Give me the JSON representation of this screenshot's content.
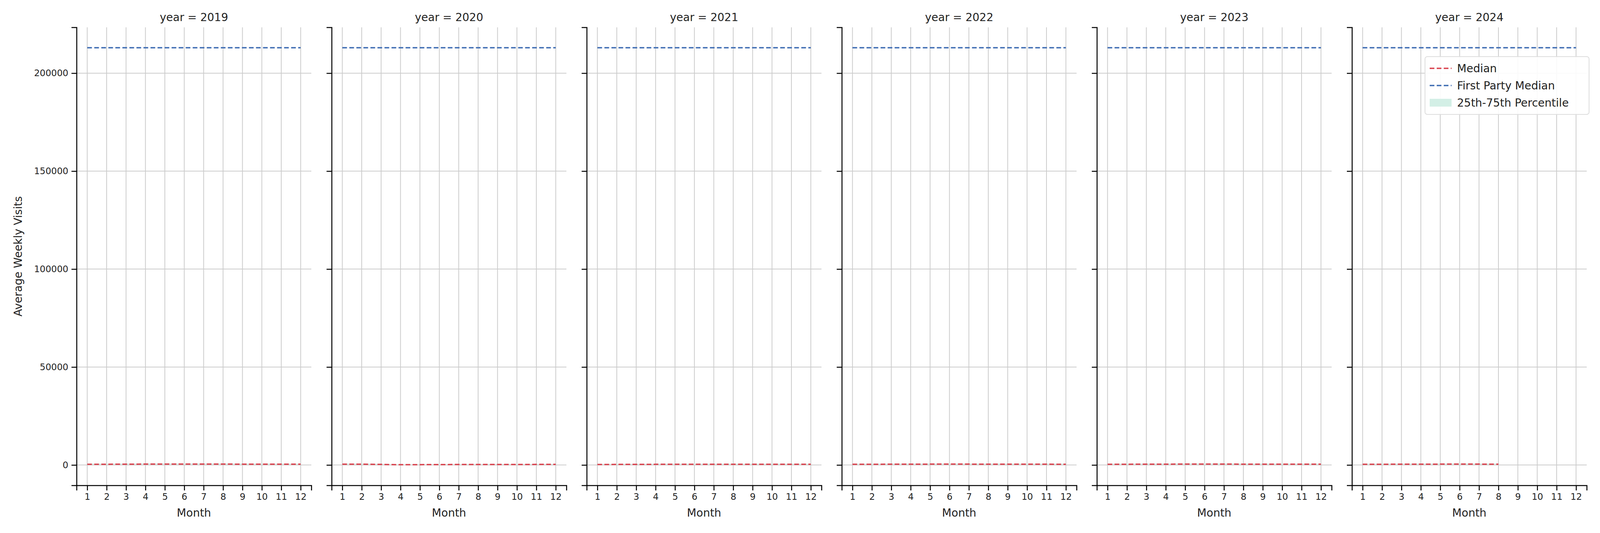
{
  "chart_data": [
    {
      "type": "line",
      "title": "year = 2019",
      "xlabel": "Month",
      "ylabel": "Average Weekly Visits",
      "x": [
        1,
        2,
        3,
        4,
        5,
        6,
        7,
        8,
        9,
        10,
        11,
        12
      ],
      "xlim": [
        0.45,
        12.55
      ],
      "ylim": [
        -10400,
        223400
      ],
      "xticks": [
        1,
        2,
        3,
        4,
        5,
        6,
        7,
        8,
        9,
        10,
        11,
        12
      ],
      "yticks": [
        0,
        50000,
        100000,
        150000,
        200000
      ],
      "grid": true,
      "series": [
        {
          "name": "25th-75th Percentile",
          "type": "area",
          "color": "#d3efe6",
          "low": [
            200,
            210,
            230,
            240,
            250,
            250,
            240,
            230,
            220,
            210,
            210,
            200
          ],
          "high": [
            700,
            720,
            760,
            790,
            810,
            820,
            810,
            790,
            760,
            740,
            730,
            720
          ]
        },
        {
          "name": "Median",
          "type": "line",
          "color": "#d9434f",
          "line_style": "dashed",
          "values": [
            350,
            380,
            420,
            450,
            470,
            480,
            470,
            450,
            430,
            410,
            400,
            390
          ]
        },
        {
          "name": "First Party Median",
          "type": "line",
          "color": "#3f6db3",
          "line_style": "dashed",
          "values": [
            213000,
            213000,
            213000,
            213000,
            213000,
            213000,
            213000,
            213000,
            213000,
            213000,
            213000,
            213000
          ]
        }
      ]
    },
    {
      "type": "line",
      "title": "year = 2020",
      "xlabel": "Month",
      "tick_labels": "x",
      "x": [
        1,
        2,
        3,
        4,
        5,
        6,
        7,
        8,
        9,
        10,
        11,
        12
      ],
      "xlim": [
        0.45,
        12.55
      ],
      "ylim": [
        -10400,
        223400
      ],
      "xticks": [
        1,
        2,
        3,
        4,
        5,
        6,
        7,
        8,
        9,
        10,
        11,
        12
      ],
      "yticks": [
        0,
        50000,
        100000,
        150000,
        200000
      ],
      "grid": true,
      "series": [
        {
          "name": "25th-75th Percentile",
          "type": "area",
          "color": "#d3efe6",
          "low": [
            220,
            230,
            160,
            60,
            80,
            100,
            120,
            130,
            140,
            140,
            150,
            160
          ],
          "high": [
            760,
            780,
            560,
            260,
            320,
            380,
            420,
            440,
            460,
            470,
            480,
            500
          ]
        },
        {
          "name": "Median",
          "type": "line",
          "color": "#d9434f",
          "line_style": "dashed",
          "values": [
            400,
            420,
            300,
            150,
            180,
            220,
            250,
            260,
            270,
            280,
            290,
            300
          ]
        },
        {
          "name": "First Party Median",
          "type": "line",
          "color": "#3f6db3",
          "line_style": "dashed",
          "values": [
            213000,
            213000,
            213000,
            213000,
            213000,
            213000,
            213000,
            213000,
            213000,
            213000,
            213000,
            213000
          ]
        }
      ]
    },
    {
      "type": "line",
      "title": "year = 2021",
      "xlabel": "Month",
      "tick_labels": "x",
      "x": [
        1,
        2,
        3,
        4,
        5,
        6,
        7,
        8,
        9,
        10,
        11,
        12
      ],
      "xlim": [
        0.45,
        12.55
      ],
      "ylim": [
        -10400,
        223400
      ],
      "xticks": [
        1,
        2,
        3,
        4,
        5,
        6,
        7,
        8,
        9,
        10,
        11,
        12
      ],
      "yticks": [
        0,
        50000,
        100000,
        150000,
        200000
      ],
      "grid": true,
      "series": [
        {
          "name": "25th-75th Percentile",
          "type": "area",
          "color": "#d3efe6",
          "low": [
            150,
            150,
            170,
            180,
            190,
            200,
            200,
            190,
            190,
            190,
            200,
            200
          ],
          "high": [
            520,
            540,
            580,
            620,
            650,
            670,
            670,
            650,
            640,
            640,
            650,
            660
          ]
        },
        {
          "name": "Median",
          "type": "line",
          "color": "#d9434f",
          "line_style": "dashed",
          "values": [
            280,
            290,
            320,
            340,
            360,
            370,
            370,
            360,
            350,
            350,
            360,
            370
          ]
        },
        {
          "name": "First Party Median",
          "type": "line",
          "color": "#3f6db3",
          "line_style": "dashed",
          "values": [
            213000,
            213000,
            213000,
            213000,
            213000,
            213000,
            213000,
            213000,
            213000,
            213000,
            213000,
            213000
          ]
        }
      ]
    },
    {
      "type": "line",
      "title": "year = 2022",
      "xlabel": "Month",
      "tick_labels": "x",
      "x": [
        1,
        2,
        3,
        4,
        5,
        6,
        7,
        8,
        9,
        10,
        11,
        12
      ],
      "xlim": [
        0.45,
        12.55
      ],
      "ylim": [
        -10400,
        223400
      ],
      "xticks": [
        1,
        2,
        3,
        4,
        5,
        6,
        7,
        8,
        9,
        10,
        11,
        12
      ],
      "yticks": [
        0,
        50000,
        100000,
        150000,
        200000
      ],
      "grid": true,
      "series": [
        {
          "name": "25th-75th Percentile",
          "type": "area",
          "color": "#d3efe6",
          "low": [
            190,
            200,
            210,
            220,
            230,
            230,
            220,
            210,
            210,
            200,
            200,
            200
          ],
          "high": [
            660,
            680,
            720,
            750,
            770,
            780,
            770,
            750,
            730,
            710,
            700,
            690
          ]
        },
        {
          "name": "Median",
          "type": "line",
          "color": "#d9434f",
          "line_style": "dashed",
          "values": [
            360,
            370,
            400,
            420,
            440,
            450,
            440,
            420,
            410,
            400,
            390,
            380
          ]
        },
        {
          "name": "First Party Median",
          "type": "line",
          "color": "#3f6db3",
          "line_style": "dashed",
          "values": [
            213000,
            213000,
            213000,
            213000,
            213000,
            213000,
            213000,
            213000,
            213000,
            213000,
            213000,
            213000
          ]
        }
      ]
    },
    {
      "type": "line",
      "title": "year = 2023",
      "xlabel": "Month",
      "tick_labels": "x",
      "x": [
        1,
        2,
        3,
        4,
        5,
        6,
        7,
        8,
        9,
        10,
        11,
        12
      ],
      "xlim": [
        0.45,
        12.55
      ],
      "ylim": [
        -10400,
        223400
      ],
      "xticks": [
        1,
        2,
        3,
        4,
        5,
        6,
        7,
        8,
        9,
        10,
        11,
        12
      ],
      "yticks": [
        0,
        50000,
        100000,
        150000,
        200000
      ],
      "grid": true,
      "series": [
        {
          "name": "25th-75th Percentile",
          "type": "area",
          "color": "#d3efe6",
          "low": [
            200,
            210,
            220,
            230,
            240,
            240,
            230,
            220,
            220,
            210,
            210,
            210
          ],
          "high": [
            680,
            700,
            740,
            770,
            790,
            800,
            790,
            770,
            750,
            730,
            720,
            710
          ]
        },
        {
          "name": "Median",
          "type": "line",
          "color": "#d9434f",
          "line_style": "dashed",
          "values": [
            370,
            380,
            410,
            430,
            450,
            460,
            450,
            430,
            420,
            410,
            400,
            390
          ]
        },
        {
          "name": "First Party Median",
          "type": "line",
          "color": "#3f6db3",
          "line_style": "dashed",
          "values": [
            213000,
            213000,
            213000,
            213000,
            213000,
            213000,
            213000,
            213000,
            213000,
            213000,
            213000,
            213000
          ]
        }
      ]
    },
    {
      "type": "line",
      "title": "year = 2024",
      "xlabel": "Month",
      "tick_labels": "x",
      "legend": "upper right",
      "x": [
        1,
        2,
        3,
        4,
        5,
        6,
        7,
        8,
        9,
        10,
        11,
        12
      ],
      "xlim": [
        0.45,
        12.55
      ],
      "ylim": [
        -10400,
        223400
      ],
      "xticks": [
        1,
        2,
        3,
        4,
        5,
        6,
        7,
        8,
        9,
        10,
        11,
        12
      ],
      "yticks": [
        0,
        50000,
        100000,
        150000,
        200000
      ],
      "grid": true,
      "series": [
        {
          "name": "25th-75th Percentile",
          "type": "area",
          "color": "#d3efe6",
          "low": [
            200,
            210,
            220,
            230,
            240,
            240,
            230,
            220,
            null,
            null,
            null,
            null
          ],
          "high": [
            680,
            700,
            730,
            760,
            780,
            790,
            780,
            760,
            null,
            null,
            null,
            null
          ]
        },
        {
          "name": "Median",
          "type": "line",
          "color": "#d9434f",
          "line_style": "dashed",
          "values": [
            370,
            380,
            400,
            420,
            440,
            450,
            440,
            420,
            null,
            null,
            null,
            null
          ]
        },
        {
          "name": "First Party Median",
          "type": "line",
          "color": "#3f6db3",
          "line_style": "dashed",
          "values": [
            213000,
            213000,
            213000,
            213000,
            213000,
            213000,
            213000,
            213000,
            213000,
            213000,
            213000,
            213000
          ]
        }
      ]
    }
  ]
}
